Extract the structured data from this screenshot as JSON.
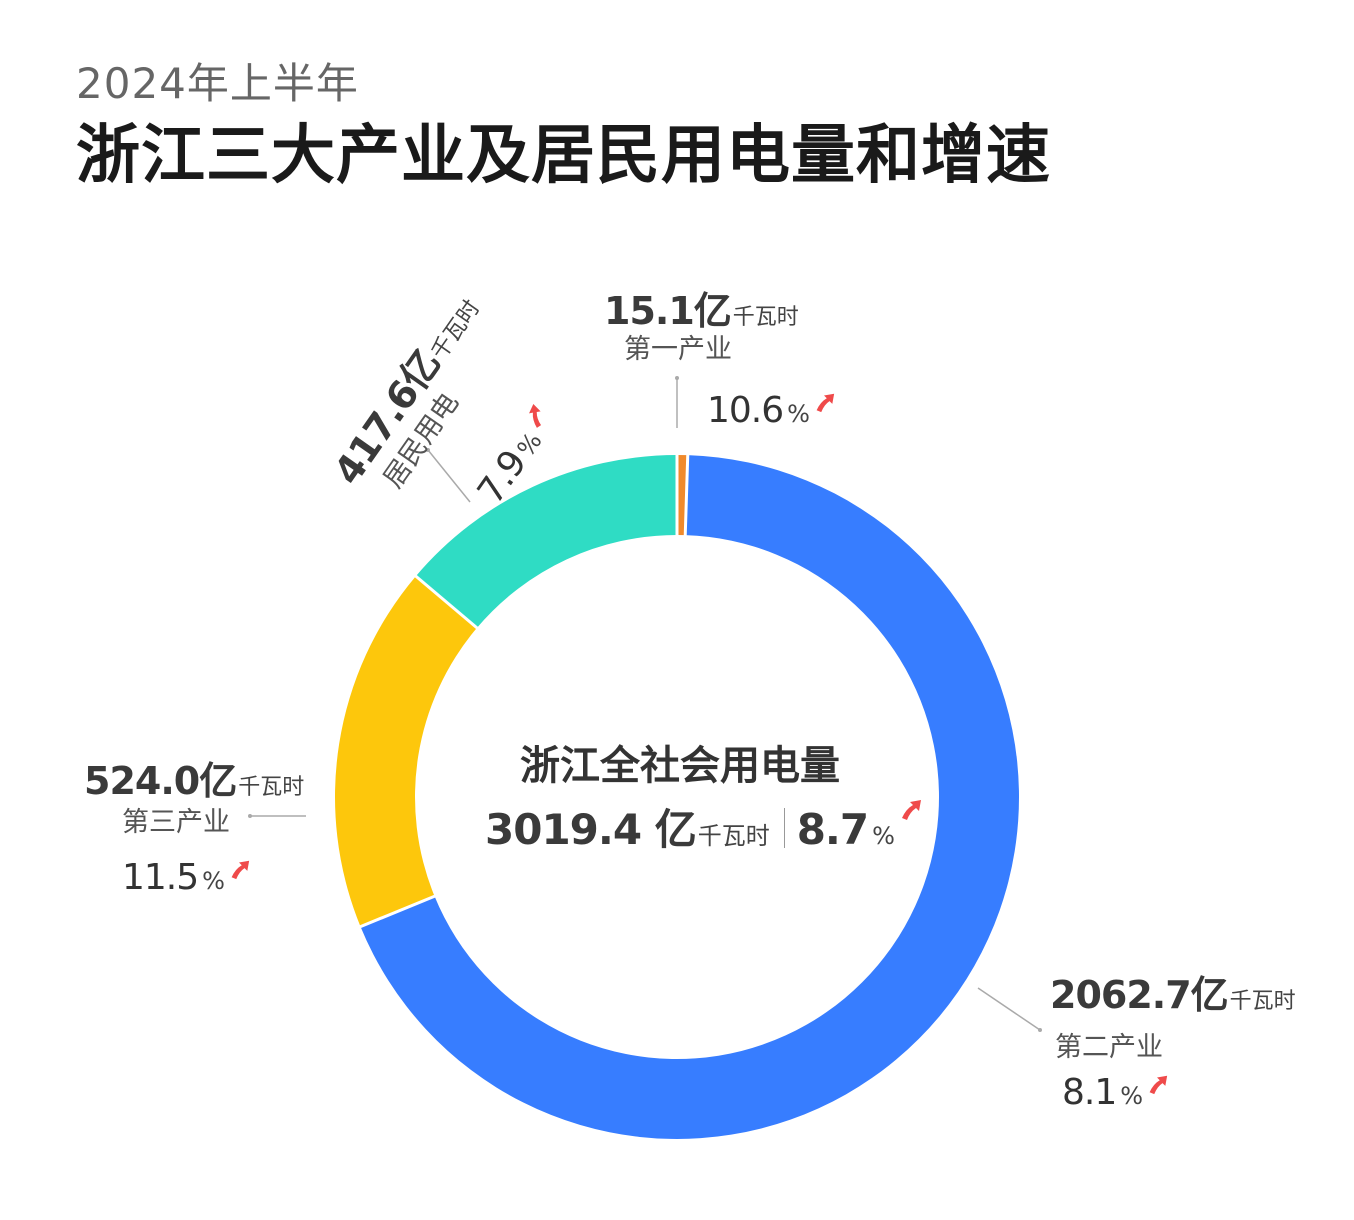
{
  "header": {
    "subtitle": "2024年上半年",
    "title": "浙江三大产业及居民用电量和增速"
  },
  "center": {
    "title": "浙江全社会用电量",
    "value": "3019.4 亿",
    "unit": "千瓦时",
    "growth": "8.7",
    "growth_unit": "%"
  },
  "segments": [
    {
      "name": "第一产业",
      "value_text": "15.1亿",
      "unit": "千瓦时",
      "growth": "10.6",
      "pct": "%"
    },
    {
      "name": "第二产业",
      "value_text": "2062.7亿",
      "unit": "千瓦时",
      "growth": "8.1",
      "pct": "%"
    },
    {
      "name": "第三产业",
      "value_text": "524.0亿",
      "unit": "千瓦时",
      "growth": "11.5",
      "pct": "%"
    },
    {
      "name": "居民用电",
      "value_text": "417.6亿",
      "unit": "千瓦时",
      "growth": "7.9",
      "pct": "%"
    }
  ],
  "colors": {
    "primary": "#f08a2c",
    "secondary": "#377dff",
    "tertiary": "#fdc70c",
    "residential": "#2fdcc4",
    "arrow": "#ef4a4a"
  },
  "chart_data": {
    "type": "pie",
    "variant": "donut",
    "title": "浙江三大产业及居民用电量和增速",
    "subtitle": "2024年上半年",
    "unit": "亿千瓦时",
    "total": 3019.4,
    "total_growth_pct": 8.7,
    "categories": [
      "第一产业",
      "第二产业",
      "第三产业",
      "居民用电"
    ],
    "values": [
      15.1,
      2062.7,
      524.0,
      417.6
    ],
    "growth_pct": [
      10.6,
      8.1,
      11.5,
      7.9
    ],
    "colors": [
      "#f08a2c",
      "#377dff",
      "#fdc70c",
      "#2fdcc4"
    ]
  }
}
